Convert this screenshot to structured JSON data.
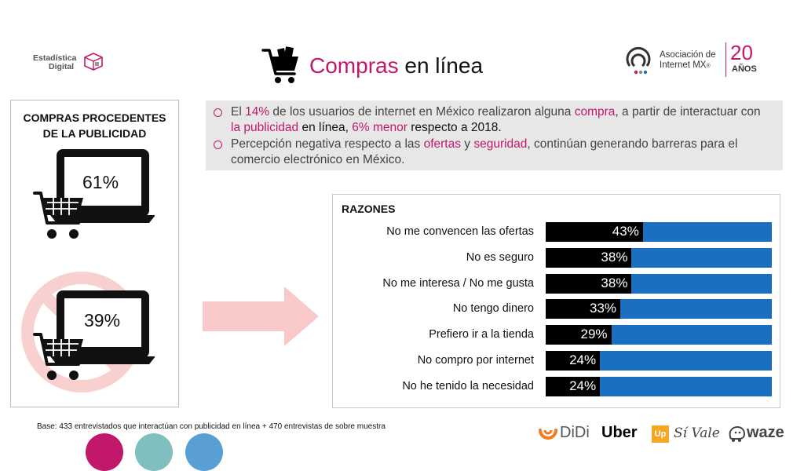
{
  "header": {
    "logo_left": {
      "line1": "Estadística",
      "line2": "Digital"
    },
    "title_accent": "Compras",
    "title_rest": " en línea",
    "logo_right": {
      "line1": "Asociación de",
      "line2": "Internet MX",
      "suffix": "®",
      "number": "20",
      "label": "AÑOS"
    }
  },
  "left_panel": {
    "title_line1": "COMPRAS PROCEDENTES",
    "title_line2": "DE LA PUBLICIDAD",
    "stat_yes": "61%",
    "stat_no": "39%"
  },
  "info": {
    "bullet1": [
      {
        "t": "El ",
        "s": "n"
      },
      {
        "t": "14%",
        "s": "h"
      },
      {
        "t": " de los usuarios de internet en México realizaron alguna ",
        "s": "n"
      },
      {
        "t": "compra",
        "s": "h"
      },
      {
        "t": ", a partir de interactuar con ",
        "s": "n"
      },
      {
        "t": "la publicidad",
        "s": "h"
      },
      {
        "t": " en línea, ",
        "s": "d"
      },
      {
        "t": "6% menor",
        "s": "h"
      },
      {
        "t": " respecto a 2018.",
        "s": "d"
      }
    ],
    "bullet2": [
      {
        "t": "Percepción negativa respecto a las ",
        "s": "n"
      },
      {
        "t": "ofertas",
        "s": "h"
      },
      {
        "t": " y ",
        "s": "n"
      },
      {
        "t": "seguridad",
        "s": "h"
      },
      {
        "t": ", continúan generando barreras para el comercio electrónico en México.",
        "s": "n"
      }
    ]
  },
  "chart_data": {
    "type": "bar",
    "title": "RAZONES",
    "orientation": "horizontal",
    "stacked_to": 100,
    "categories": [
      "No me convencen las ofertas",
      "No es seguro",
      "No me interesa / No me gusta",
      "No tengo dinero",
      "Prefiero ir a la tienda",
      "No compro por internet",
      "No he tenido la necesidad"
    ],
    "values": [
      43,
      38,
      38,
      33,
      29,
      24,
      24
    ],
    "value_labels": [
      "43%",
      "38%",
      "38%",
      "33%",
      "29%",
      "24%",
      "24%"
    ],
    "colors": {
      "value": "#000000",
      "remainder": "#1a6fc0"
    }
  },
  "footer": {
    "base_note": "Base: 433 entrevistados que interactúan con publicidad en línea + 470 entrevistas de sobre muestra",
    "brands": [
      "DiDi",
      "Uber",
      "Up",
      "Sí Vale",
      "waze"
    ]
  },
  "colors": {
    "accent": "#c2186b",
    "bar_blue": "#1a6fc0",
    "info_bg": "#e7e7e7",
    "arrow": "#f9c9c9",
    "no_sign": "#f8d0d0"
  }
}
